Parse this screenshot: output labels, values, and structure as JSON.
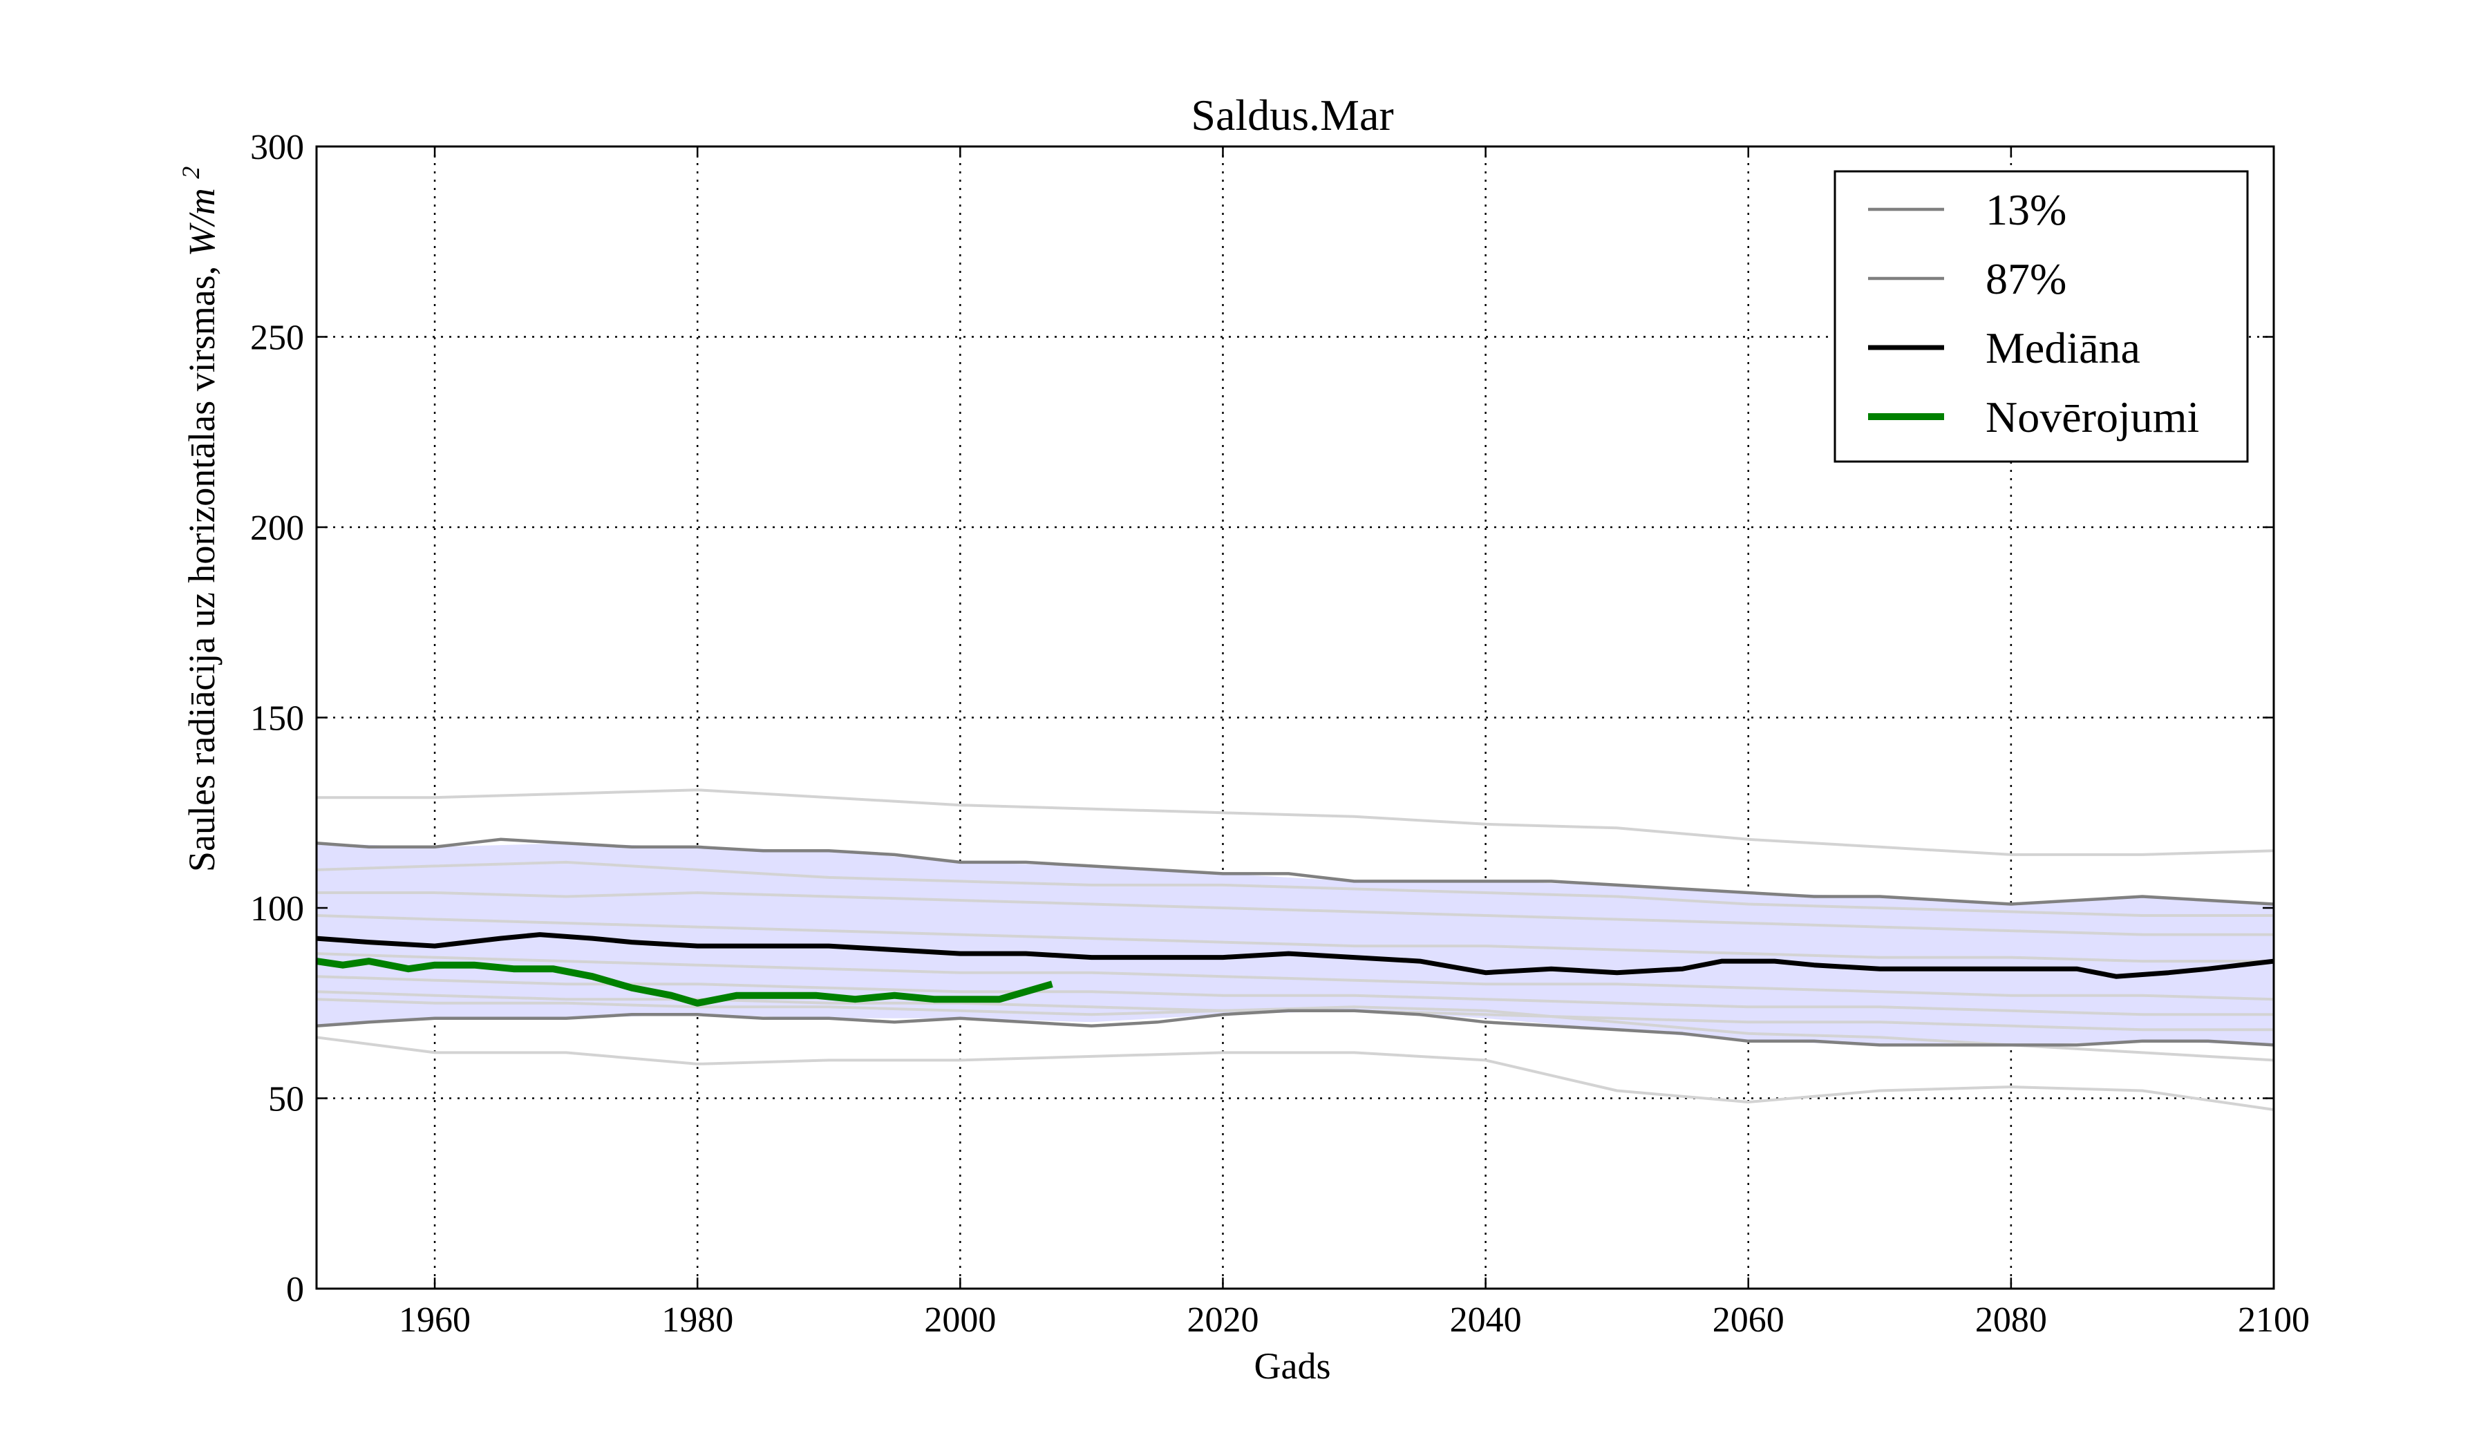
{
  "chart_data": {
    "type": "line",
    "title": "Saldus.Mar",
    "xlabel": "Gads",
    "ylabel": "Saules radiācija uz horizontālas virsmas, ",
    "ylabel_unit": "W/m",
    "ylabel_unit_exp": "2",
    "xlim": [
      1951,
      2100
    ],
    "ylim": [
      0,
      300
    ],
    "xticks": [
      "1960",
      "1980",
      "2000",
      "2020",
      "2040",
      "2060",
      "2080",
      "2100"
    ],
    "yticks": [
      "0",
      "50",
      "100",
      "150",
      "200",
      "250",
      "300"
    ],
    "grid": true,
    "legend_position": "top-right",
    "colors": {
      "band": "#e0e0ff",
      "percentile": "#808080",
      "ensemble": "#d3d3d3",
      "median": "#000000",
      "observations": "#008000"
    },
    "band": {
      "x": [
        1951,
        1960,
        1970,
        1980,
        1990,
        2000,
        2010,
        2020,
        2030,
        2040,
        2050,
        2060,
        2070,
        2080,
        2090,
        2100
      ],
      "lower": [
        69,
        71,
        71,
        72,
        71,
        71,
        70,
        72,
        73,
        71,
        68,
        65,
        64,
        64,
        65,
        64
      ],
      "upper": [
        117,
        116,
        117,
        116,
        115,
        112,
        111,
        109,
        107,
        107,
        106,
        104,
        103,
        101,
        103,
        101
      ]
    },
    "series": [
      {
        "name": "13%",
        "role": "percentile",
        "x": [
          1951,
          1955,
          1960,
          1965,
          1970,
          1975,
          1980,
          1985,
          1990,
          1995,
          2000,
          2005,
          2010,
          2015,
          2020,
          2025,
          2030,
          2035,
          2040,
          2045,
          2050,
          2055,
          2060,
          2065,
          2070,
          2075,
          2080,
          2085,
          2090,
          2095,
          2100
        ],
        "y": [
          69,
          70,
          71,
          71,
          71,
          72,
          72,
          71,
          71,
          70,
          71,
          70,
          69,
          70,
          72,
          73,
          73,
          72,
          70,
          69,
          68,
          67,
          65,
          65,
          64,
          64,
          64,
          64,
          65,
          65,
          64
        ]
      },
      {
        "name": "87%",
        "role": "percentile",
        "x": [
          1951,
          1955,
          1960,
          1965,
          1970,
          1975,
          1980,
          1985,
          1990,
          1995,
          2000,
          2005,
          2010,
          2015,
          2020,
          2025,
          2030,
          2035,
          2040,
          2045,
          2050,
          2055,
          2060,
          2065,
          2070,
          2075,
          2080,
          2085,
          2090,
          2095,
          2100
        ],
        "y": [
          117,
          116,
          116,
          118,
          117,
          116,
          116,
          115,
          115,
          114,
          112,
          112,
          111,
          110,
          109,
          109,
          107,
          107,
          107,
          107,
          106,
          105,
          104,
          103,
          103,
          102,
          101,
          102,
          103,
          102,
          101
        ]
      },
      {
        "name": "Mediāna",
        "role": "median",
        "x": [
          1951,
          1955,
          1960,
          1965,
          1968,
          1972,
          1975,
          1980,
          1985,
          1990,
          1995,
          2000,
          2005,
          2010,
          2015,
          2020,
          2025,
          2030,
          2035,
          2040,
          2045,
          2050,
          2055,
          2058,
          2062,
          2065,
          2070,
          2075,
          2080,
          2085,
          2088,
          2092,
          2095,
          2100
        ],
        "y": [
          92,
          91,
          90,
          92,
          93,
          92,
          91,
          90,
          90,
          90,
          89,
          88,
          88,
          87,
          87,
          87,
          88,
          87,
          86,
          83,
          84,
          83,
          84,
          86,
          86,
          85,
          84,
          84,
          84,
          84,
          82,
          83,
          84,
          86
        ]
      },
      {
        "name": "Novērojumi",
        "role": "observations",
        "x": [
          1951,
          1953,
          1955,
          1958,
          1960,
          1963,
          1966,
          1969,
          1972,
          1975,
          1978,
          1980,
          1983,
          1986,
          1989,
          1992,
          1995,
          1998,
          2001,
          2003,
          2005,
          2007
        ],
        "y": [
          86,
          85,
          86,
          84,
          85,
          85,
          84,
          84,
          82,
          79,
          77,
          75,
          77,
          77,
          77,
          76,
          77,
          76,
          76,
          76,
          78,
          80
        ]
      }
    ],
    "ensemble": [
      {
        "x": [
          1951,
          1960,
          1970,
          1980,
          1990,
          2000,
          2010,
          2020,
          2030,
          2040,
          2050,
          2060,
          2070,
          2080,
          2090,
          2100
        ],
        "y": [
          129,
          129,
          130,
          131,
          129,
          127,
          126,
          125,
          124,
          122,
          121,
          118,
          116,
          114,
          114,
          115
        ]
      },
      {
        "x": [
          1951,
          1960,
          1970,
          1980,
          1990,
          2000,
          2010,
          2020,
          2030,
          2040,
          2050,
          2060,
          2070,
          2080,
          2090,
          2100
        ],
        "y": [
          110,
          111,
          112,
          110,
          108,
          107,
          106,
          106,
          105,
          104,
          103,
          101,
          100,
          99,
          98,
          98
        ]
      },
      {
        "x": [
          1951,
          1960,
          1970,
          1980,
          1990,
          2000,
          2010,
          2020,
          2030,
          2040,
          2050,
          2060,
          2070,
          2080,
          2090,
          2100
        ],
        "y": [
          104,
          104,
          103,
          104,
          103,
          102,
          101,
          100,
          99,
          98,
          97,
          96,
          95,
          94,
          93,
          93
        ]
      },
      {
        "x": [
          1951,
          1960,
          1970,
          1980,
          1990,
          2000,
          2010,
          2020,
          2030,
          2040,
          2050,
          2060,
          2070,
          2080,
          2090,
          2100
        ],
        "y": [
          98,
          97,
          96,
          95,
          94,
          93,
          92,
          91,
          90,
          90,
          89,
          88,
          87,
          87,
          86,
          86
        ]
      },
      {
        "x": [
          1951,
          1960,
          1970,
          1980,
          1990,
          2000,
          2010,
          2020,
          2030,
          2040,
          2050,
          2060,
          2070,
          2080,
          2090,
          2100
        ],
        "y": [
          88,
          87,
          86,
          85,
          84,
          83,
          83,
          82,
          81,
          80,
          80,
          79,
          78,
          77,
          77,
          76
        ]
      },
      {
        "x": [
          1951,
          1960,
          1970,
          1980,
          1990,
          2000,
          2010,
          2020,
          2030,
          2040,
          2050,
          2060,
          2070,
          2080,
          2090,
          2100
        ],
        "y": [
          82,
          81,
          80,
          80,
          79,
          78,
          78,
          77,
          77,
          76,
          75,
          74,
          74,
          73,
          72,
          72
        ]
      },
      {
        "x": [
          1951,
          1960,
          1970,
          1980,
          1990,
          2000,
          2010,
          2020,
          2030,
          2040,
          2050,
          2060,
          2070,
          2080,
          2090,
          2100
        ],
        "y": [
          78,
          77,
          76,
          76,
          75,
          75,
          74,
          73,
          73,
          72,
          71,
          70,
          70,
          69,
          68,
          68
        ]
      },
      {
        "x": [
          1951,
          1960,
          1970,
          1980,
          1990,
          2000,
          2010,
          2020,
          2030,
          2040,
          2050,
          2060,
          2070,
          2080,
          2090,
          2100
        ],
        "y": [
          66,
          62,
          62,
          59,
          60,
          60,
          61,
          62,
          62,
          60,
          52,
          49,
          52,
          53,
          52,
          47
        ]
      },
      {
        "x": [
          1951,
          1960,
          1970,
          1980,
          1990,
          2000,
          2010,
          2020,
          2030,
          2040,
          2050,
          2060,
          2070,
          2080,
          2090,
          2100
        ],
        "y": [
          76,
          75,
          75,
          74,
          74,
          73,
          72,
          73,
          74,
          73,
          70,
          67,
          66,
          64,
          62,
          60
        ]
      }
    ]
  }
}
